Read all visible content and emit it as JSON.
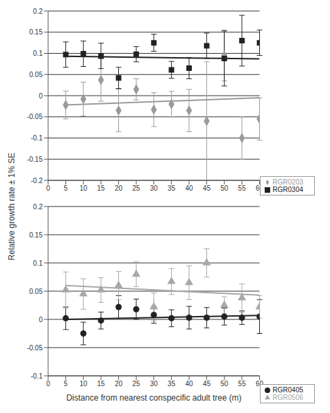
{
  "chart_data": [
    {
      "type": "scatter",
      "y_label": "Relative growth rate ± 1% SE",
      "xlim": [
        0,
        60
      ],
      "xticks": [
        0,
        5,
        10,
        15,
        20,
        25,
        30,
        35,
        40,
        45,
        50,
        55,
        60
      ],
      "ylim": [
        -0.2,
        0.2
      ],
      "yticks": [
        -0.2,
        -0.15,
        -0.1,
        -0.05,
        0,
        0.05,
        0.1,
        0.15,
        0.2
      ],
      "grid": true,
      "legend": "bottom right",
      "x": [
        5,
        10,
        15,
        20,
        25,
        30,
        35,
        40,
        45,
        50,
        55,
        60
      ],
      "series": [
        {
          "name": "RGR0203",
          "color": "#9a9a9a",
          "marker": "diamond",
          "values": [
            -0.022,
            -0.008,
            0.037,
            -0.035,
            0.015,
            -0.033,
            -0.02,
            -0.035,
            -0.06,
            0.095,
            -0.1,
            -0.055
          ],
          "errors": [
            0.033,
            0.04,
            0.05,
            0.05,
            0.025,
            0.04,
            0.03,
            0.05,
            0.14,
            0.06,
            0.05,
            0.05
          ],
          "trend_x": [
            5,
            60
          ],
          "trend_values": [
            -0.022,
            -0.005
          ]
        },
        {
          "name": "RGR0304",
          "color": "#222222",
          "marker": "square",
          "values": [
            0.097,
            0.099,
            0.094,
            0.042,
            0.098,
            0.125,
            0.061,
            0.065,
            0.118,
            0.088,
            0.13,
            0.125
          ],
          "errors": [
            0.03,
            0.03,
            0.03,
            0.025,
            0.018,
            0.02,
            0.02,
            0.025,
            0.03,
            0.065,
            0.06,
            0.03
          ],
          "trend_x": [
            5,
            60
          ],
          "trend_values": [
            0.093,
            0.087
          ]
        }
      ]
    },
    {
      "type": "scatter",
      "x_label": "Distance from nearest conspecific adult tree (m)",
      "xlim": [
        0,
        60
      ],
      "xticks": [
        0,
        5,
        10,
        15,
        20,
        25,
        30,
        35,
        40,
        45,
        50,
        55,
        60
      ],
      "ylim": [
        -0.1,
        0.2
      ],
      "yticks": [
        -0.1,
        -0.05,
        0,
        0.05,
        0.1,
        0.15,
        0.2
      ],
      "grid": true,
      "legend": "bottom right",
      "x": [
        5,
        10,
        15,
        20,
        25,
        30,
        35,
        40,
        45,
        50,
        55,
        60
      ],
      "series": [
        {
          "name": "RGR0405",
          "color": "#222222",
          "marker": "circle",
          "values": [
            0.002,
            -0.025,
            -0.002,
            0.022,
            0.018,
            0.008,
            0.002,
            0.003,
            0.003,
            0.005,
            0.003,
            0.005
          ],
          "errors": [
            0.02,
            0.02,
            0.015,
            0.02,
            0.018,
            0.015,
            0.015,
            0.02,
            0.018,
            0.015,
            0.012,
            0.03
          ],
          "trend_x": [
            5,
            60
          ],
          "trend_values": [
            0.0,
            0.007
          ]
        },
        {
          "name": "RGR0506",
          "color": "#a8a8a8",
          "marker": "triangle",
          "values": [
            0.052,
            0.045,
            0.052,
            0.06,
            0.08,
            0.022,
            0.067,
            0.065,
            0.1,
            0.025,
            0.038,
            0.022
          ],
          "errors": [
            0.032,
            0.027,
            0.022,
            0.025,
            0.022,
            0.025,
            0.023,
            0.03,
            0.025,
            0.015,
            0.025,
            0.02
          ],
          "trend_x": [
            5,
            60
          ],
          "trend_values": [
            0.06,
            0.043
          ]
        }
      ]
    }
  ]
}
